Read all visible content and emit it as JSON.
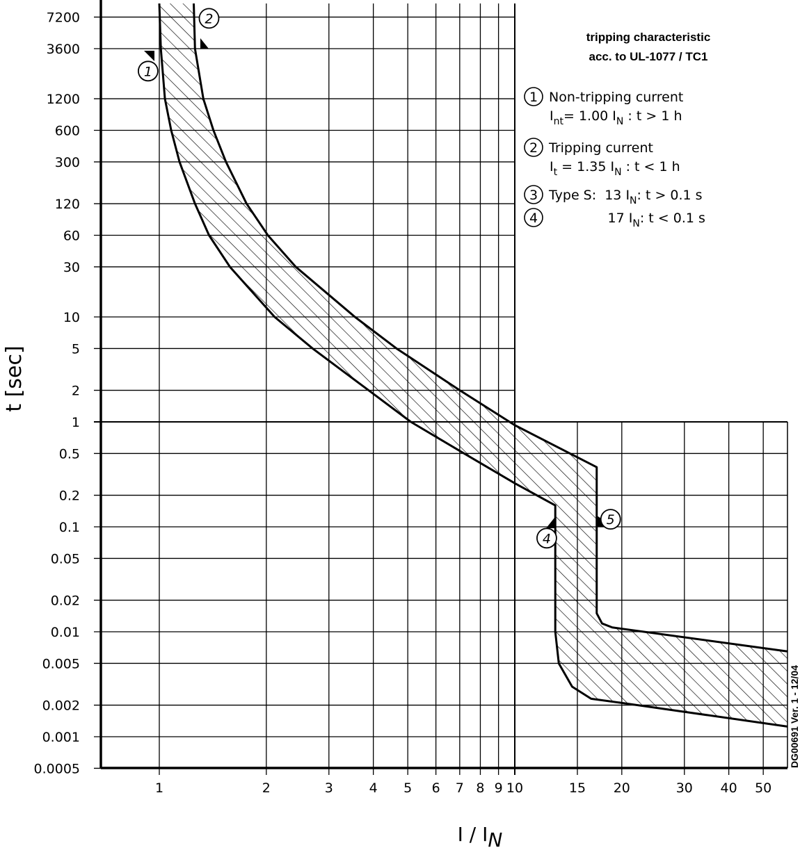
{
  "chart_data": {
    "type": "line",
    "title": [
      "tripping characteristic",
      "acc. to UL-1077 / TC1"
    ],
    "xlabel": {
      "main": "I / I",
      "sub": "N"
    },
    "ylabel": "t [sec]",
    "xscale": "log",
    "yscale": "log",
    "xlim": [
      0.685,
      58.5
    ],
    "ylim": [
      0.0005,
      9700
    ],
    "grid": true,
    "x_ticks": [
      1,
      2,
      3,
      4,
      5,
      6,
      7,
      8,
      9,
      10,
      15,
      20,
      30,
      40,
      50
    ],
    "x_tick_labels": [
      "1",
      "2",
      "3",
      "4",
      "5",
      "6",
      "7",
      "8",
      "9",
      "10",
      "15",
      "20",
      "30",
      "40",
      "50"
    ],
    "y_ticks": [
      7200,
      3600,
      1200,
      600,
      300,
      120,
      60,
      30,
      10,
      5,
      2,
      1,
      0.5,
      0.2,
      0.1,
      0.05,
      0.02,
      0.01,
      0.005,
      0.002,
      0.001,
      0.0005
    ],
    "y_tick_labels": [
      "7200",
      "3600",
      "1200",
      "600",
      "300",
      "120",
      "60",
      "30",
      "10",
      "5",
      "2",
      "1",
      "0.5",
      "0.2",
      "0.1",
      "0.05",
      "0.02",
      "0.01",
      "0.005",
      "0.002",
      "0.001",
      "0.0005"
    ],
    "series": [
      {
        "id": "lower-limit",
        "points": [
          [
            1.0,
            9700
          ],
          [
            1.01,
            3600
          ],
          [
            1.037,
            1200
          ],
          [
            1.08,
            600
          ],
          [
            1.14,
            300
          ],
          [
            1.26,
            120
          ],
          [
            1.38,
            60
          ],
          [
            1.58,
            30
          ],
          [
            2.11,
            10
          ],
          [
            2.7,
            5
          ],
          [
            3.88,
            2
          ],
          [
            5.1,
            1
          ],
          [
            7.2,
            0.5
          ],
          [
            10,
            0.26
          ],
          [
            13,
            0.16
          ],
          [
            13,
            0.01
          ],
          [
            13.3,
            0.005
          ],
          [
            14.5,
            0.003
          ],
          [
            16.4,
            0.0023
          ],
          [
            20,
            0.0021
          ],
          [
            58.5,
            0.00125
          ]
        ]
      },
      {
        "id": "upper-limit",
        "points": [
          [
            1.25,
            9700
          ],
          [
            1.26,
            3600
          ],
          [
            1.33,
            1200
          ],
          [
            1.42,
            600
          ],
          [
            1.54,
            300
          ],
          [
            1.76,
            120
          ],
          [
            2.02,
            60
          ],
          [
            2.42,
            30
          ],
          [
            3.55,
            10
          ],
          [
            4.65,
            5
          ],
          [
            7.0,
            2
          ],
          [
            10,
            0.93
          ],
          [
            17,
            0.37
          ],
          [
            17,
            0.015
          ],
          [
            17.6,
            0.012
          ],
          [
            18.8,
            0.011
          ],
          [
            58.5,
            0.0065
          ]
        ]
      }
    ],
    "markers": [
      {
        "label": "1",
        "I": 0.93,
        "t": 2200
      },
      {
        "label": "2",
        "I": 1.38,
        "t": 7000
      },
      {
        "label": "4",
        "I": 12.3,
        "t": 0.078
      },
      {
        "label": "5",
        "I": 18.6,
        "t": 0.118
      }
    ],
    "legend": [
      {
        "num": "1",
        "lines": [
          [
            {
              "t": "Non-tripping current"
            }
          ],
          [
            {
              "t": "I"
            },
            {
              "s": "nt"
            },
            {
              "t": "= 1.00 I"
            },
            {
              "s": "N"
            },
            {
              "t": " : t > 1 h"
            }
          ]
        ]
      },
      {
        "num": "2",
        "lines": [
          [
            {
              "t": "Tripping current"
            }
          ],
          [
            {
              "t": "I"
            },
            {
              "s": "t"
            },
            {
              "t": " = 1.35 I"
            },
            {
              "s": "N"
            },
            {
              "t": " : t < 1 h"
            }
          ]
        ]
      },
      {
        "num": "3",
        "lines": [
          [
            {
              "t": "Type S:  13 I"
            },
            {
              "s": "N"
            },
            {
              "t": ": t > 0.1 s"
            }
          ]
        ]
      },
      {
        "num": "4",
        "lines": [
          [
            {
              "t": "              17 I"
            },
            {
              "s": "N"
            },
            {
              "t": ": t < 0.1 s"
            }
          ]
        ]
      }
    ],
    "version_note": "DG00691  Ver. 1 - 12/04"
  }
}
